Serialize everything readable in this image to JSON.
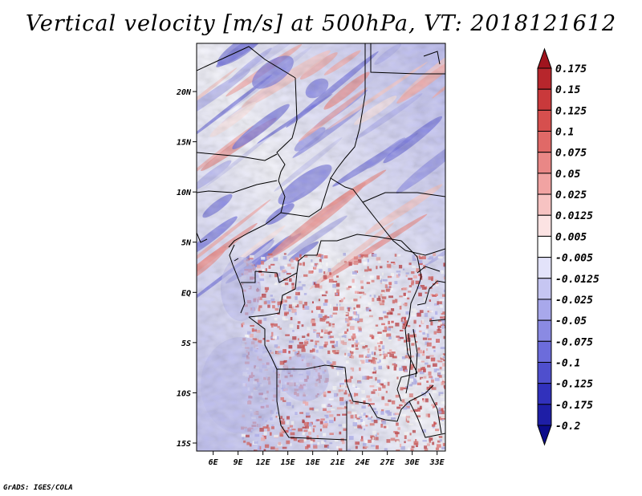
{
  "title": "Vertical velocity [m/s] at 500hPa, VT: 2018121612",
  "credit": "GrADS: IGES/COLA",
  "map": {
    "lat_labels": [
      "20N",
      "15N",
      "10N",
      "5N",
      "EQ",
      "5S",
      "10S",
      "15S"
    ],
    "lat_values": [
      20,
      15,
      10,
      5,
      0,
      -5,
      -10,
      -15
    ],
    "lon_labels": [
      "6E",
      "9E",
      "12E",
      "15E",
      "18E",
      "21E",
      "24E",
      "27E",
      "30E",
      "33E"
    ],
    "lon_values": [
      6,
      9,
      12,
      15,
      18,
      21,
      24,
      27,
      30,
      33
    ],
    "lon_range": [
      4,
      34
    ],
    "lat_range": [
      -15.8,
      24.8
    ]
  },
  "colorbar": {
    "levels": [
      "0.175",
      "0.15",
      "0.125",
      "0.1",
      "0.075",
      "0.05",
      "0.025",
      "0.0125",
      "0.005",
      "-0.005",
      "-0.0125",
      "-0.025",
      "-0.05",
      "-0.075",
      "-0.1",
      "-0.125",
      "-0.175",
      "-0.2"
    ],
    "colors": [
      "#a0141e",
      "#b7262c",
      "#c9393b",
      "#d64f4e",
      "#e06967",
      "#e98786",
      "#f1a3a2",
      "#f7c3c2",
      "#fce3e3",
      "#ffffff",
      "#e3e3fa",
      "#c6c6f2",
      "#a8a8eb",
      "#8a8ae3",
      "#6c6cdb",
      "#4f4fcd",
      "#3131bc",
      "#1e1ea6",
      "#0c0c8a"
    ]
  }
}
